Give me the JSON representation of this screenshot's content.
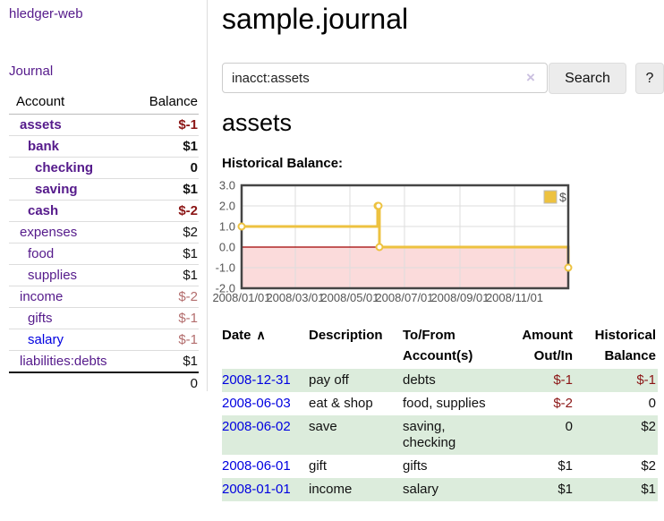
{
  "app": {
    "brand": "hledger-web",
    "journal_link": "Journal"
  },
  "colors": {
    "link_purple": "#551a8b",
    "link_blue": "#0000e0",
    "negative_strong": "#8b1515",
    "negative_faded": "#b36d6d",
    "row_stripe_green": "#dcecdc"
  },
  "sidebar": {
    "accounts_table": {
      "account_header": "Account",
      "balance_header": "Balance",
      "rows": [
        {
          "name": "assets",
          "balance": "$-1",
          "depth": 1,
          "bold": true,
          "neg": "strong"
        },
        {
          "name": "bank",
          "balance": "$1",
          "depth": 2,
          "bold": true
        },
        {
          "name": "checking",
          "balance": "0",
          "depth": 3,
          "bold": true
        },
        {
          "name": "saving",
          "balance": "$1",
          "depth": 3,
          "bold": true
        },
        {
          "name": "cash",
          "balance": "$-2",
          "depth": 2,
          "bold": true,
          "neg": "strong"
        },
        {
          "name": "expenses",
          "balance": "$2",
          "depth": 1
        },
        {
          "name": "food",
          "balance": "$1",
          "depth": 2
        },
        {
          "name": "supplies",
          "balance": "$1",
          "depth": 2
        },
        {
          "name": "income",
          "balance": "$-2",
          "depth": 1,
          "neg": "faded"
        },
        {
          "name": "gifts",
          "balance": "$-1",
          "depth": 2,
          "neg": "faded"
        },
        {
          "name": "salary",
          "balance": "$-1",
          "depth": 2,
          "neg": "faded",
          "unvisited": true
        },
        {
          "name": "liabilities:debts",
          "balance": "$1",
          "depth": 1
        }
      ],
      "total": "0"
    }
  },
  "main": {
    "title": "sample.journal",
    "search": {
      "value": "inacct:assets",
      "clear_glyph": "×",
      "search_button": "Search",
      "help_button": "?"
    },
    "account_heading": "assets",
    "chart_heading": "Historical Balance:"
  },
  "chart_data": {
    "type": "line",
    "step": true,
    "title": "Historical Balance",
    "series": [
      {
        "name": "$",
        "color": "#edc240",
        "points": [
          [
            "2008-01-01",
            1.0
          ],
          [
            "2008-06-01",
            2.0
          ],
          [
            "2008-06-02",
            2.0
          ],
          [
            "2008-06-03",
            0.0
          ],
          [
            "2008-12-31",
            -1.0
          ]
        ]
      }
    ],
    "ylim": [
      -2.0,
      3.0
    ],
    "yticks": [
      3.0,
      2.0,
      1.0,
      0.0,
      -1.0,
      -2.0
    ],
    "xticks": [
      "2008/01/01",
      "2008/03/01",
      "2008/05/01",
      "2008/07/01",
      "2008/09/01",
      "2008/11/01"
    ],
    "legend": {
      "label": "$",
      "position": "top-right"
    },
    "grid": true,
    "colors": {
      "line": "#edc240",
      "marker_fill": "#ffffff",
      "negative_region": "#fbdbdb",
      "zero_line": "#a00000",
      "border": "#454545",
      "grid": "#dedede",
      "tick_label": "#545454"
    }
  },
  "register": {
    "headers": {
      "date": "Date",
      "sort_glyph": "∧",
      "description": "Description",
      "accounts": "To/From\nAccount(s)",
      "amount": "Amount\nOut/In",
      "balance": "Historical\nBalance"
    },
    "rows": [
      {
        "date": "2008-12-31",
        "description": "pay off",
        "accounts": "debts",
        "amount": "$-1",
        "amount_neg": true,
        "balance": "$-1",
        "balance_neg": true
      },
      {
        "date": "2008-06-03",
        "description": "eat & shop",
        "accounts": "food, supplies",
        "amount": "$-2",
        "amount_neg": true,
        "balance": "0"
      },
      {
        "date": "2008-06-02",
        "description": "save",
        "accounts": "saving,\nchecking",
        "amount": "0",
        "balance": "$2"
      },
      {
        "date": "2008-06-01",
        "description": "gift",
        "accounts": "gifts",
        "amount": "$1",
        "balance": "$2"
      },
      {
        "date": "2008-01-01",
        "description": "income",
        "accounts": "salary",
        "amount": "$1",
        "balance": "$1"
      }
    ]
  }
}
